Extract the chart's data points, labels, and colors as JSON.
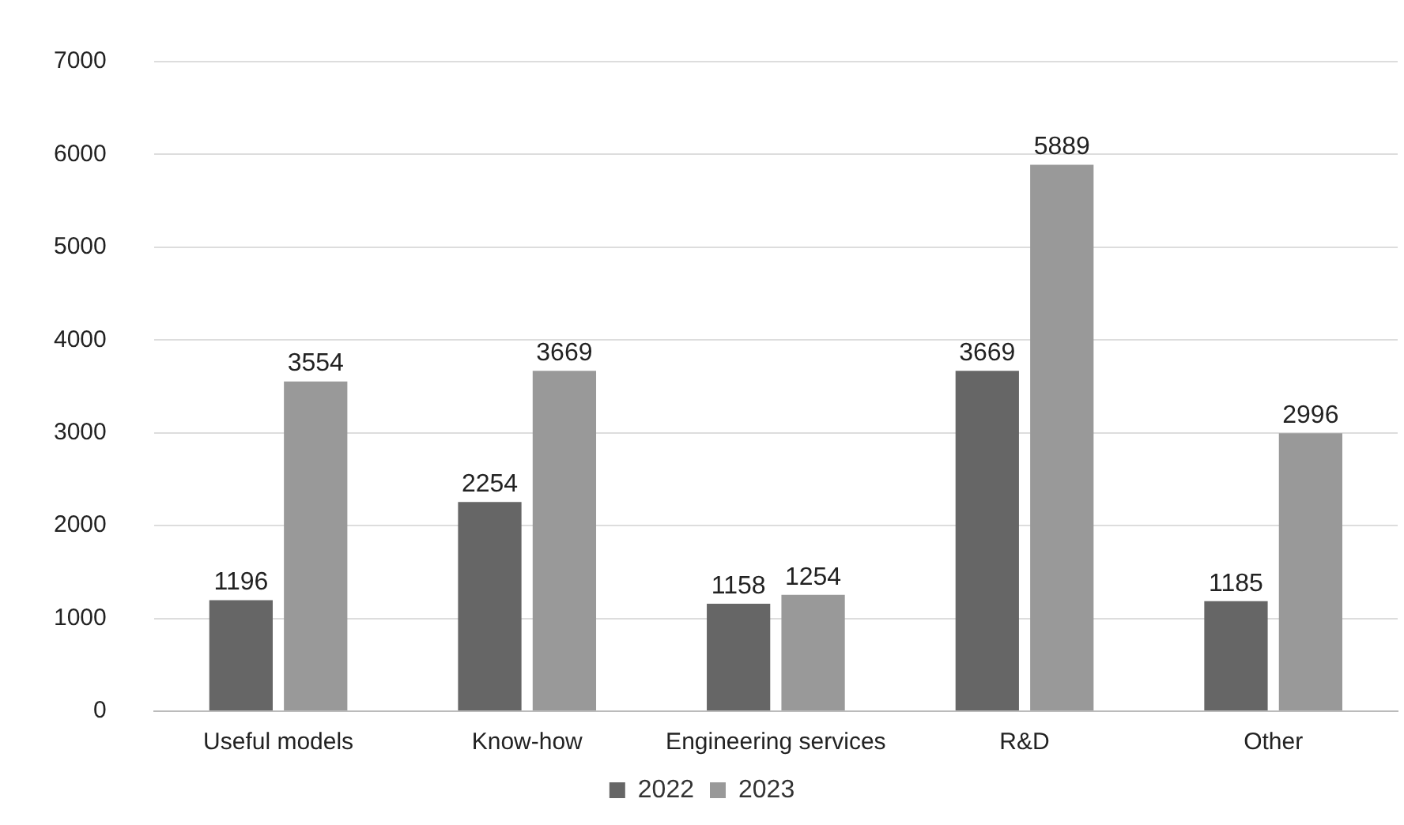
{
  "chart_data": {
    "type": "bar",
    "categories": [
      "Useful models",
      "Know-how",
      "Engineering services",
      "R&D",
      "Other"
    ],
    "series": [
      {
        "name": "2022",
        "color": "#666666",
        "values": [
          1196,
          2254,
          1158,
          3669,
          1185
        ]
      },
      {
        "name": "2023",
        "color": "#999999",
        "values": [
          3554,
          3669,
          1254,
          5889,
          2996
        ]
      }
    ],
    "ylim": [
      0,
      7000
    ],
    "yticks": [
      0,
      1000,
      2000,
      3000,
      4000,
      5000,
      6000,
      7000
    ],
    "grid": "y",
    "legend": "bottom",
    "data_labels": true
  }
}
